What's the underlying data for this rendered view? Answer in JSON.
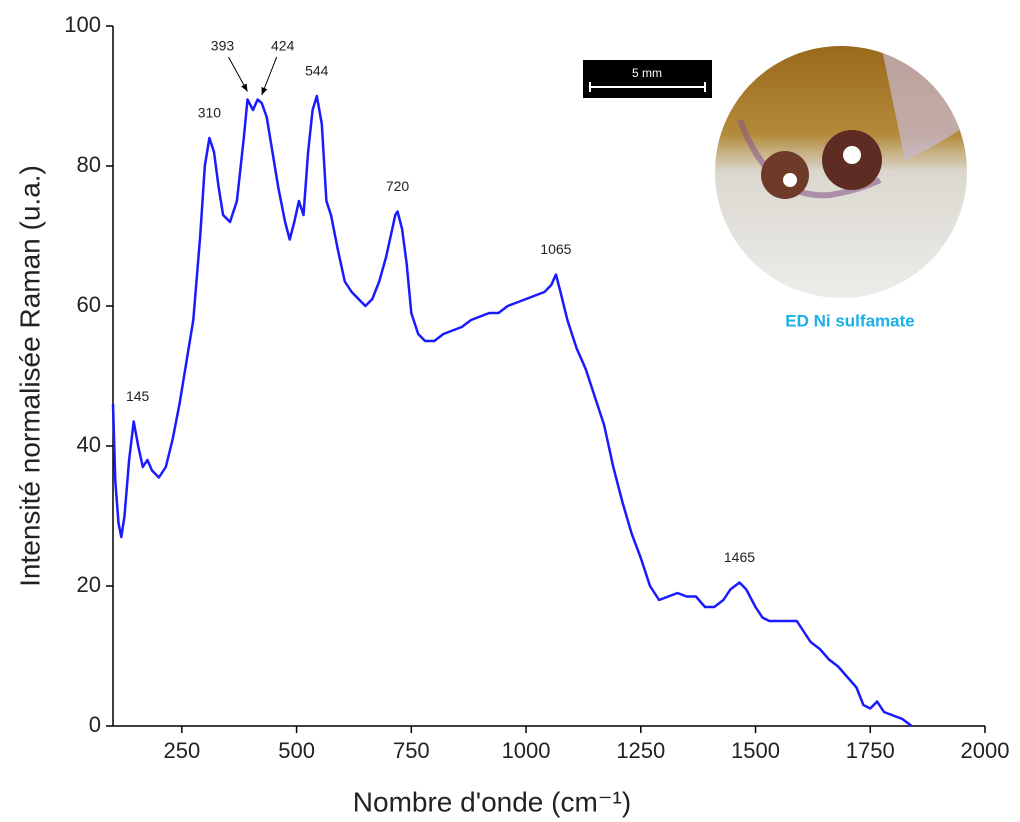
{
  "chart_data": {
    "type": "line",
    "x_label": "Nombre d'onde (cm⁻¹)",
    "y_label": "Intensité normalisée Raman (u.a.)",
    "color": "#1a1aff",
    "xlim": [
      100,
      2000
    ],
    "xticks": [
      250,
      500,
      750,
      1000,
      1250,
      1500,
      1750,
      2000
    ],
    "ylim": [
      0,
      100
    ],
    "yticks": [
      0,
      20,
      40,
      60,
      80,
      100
    ],
    "x": [
      100,
      105,
      112,
      118,
      125,
      135,
      145,
      155,
      165,
      175,
      185,
      200,
      215,
      230,
      245,
      260,
      275,
      290,
      300,
      310,
      320,
      330,
      340,
      355,
      370,
      385,
      393,
      405,
      415,
      424,
      435,
      445,
      460,
      475,
      485,
      495,
      505,
      515,
      525,
      535,
      544,
      555,
      565,
      575,
      590,
      605,
      620,
      635,
      650,
      665,
      680,
      695,
      705,
      715,
      720,
      730,
      740,
      750,
      765,
      780,
      800,
      820,
      840,
      860,
      880,
      900,
      920,
      940,
      960,
      980,
      1000,
      1020,
      1040,
      1055,
      1065,
      1075,
      1090,
      1110,
      1130,
      1150,
      1170,
      1190,
      1210,
      1230,
      1250,
      1270,
      1290,
      1310,
      1330,
      1350,
      1370,
      1390,
      1410,
      1430,
      1445,
      1465,
      1480,
      1500,
      1515,
      1530,
      1550,
      1570,
      1590,
      1605,
      1620,
      1640,
      1660,
      1680,
      1700,
      1720,
      1735,
      1750,
      1765,
      1780,
      1800,
      1820,
      1840
    ],
    "values": [
      46,
      35,
      29,
      27,
      30,
      38,
      43.5,
      40,
      37,
      38,
      36.5,
      35.5,
      37,
      41,
      46,
      52,
      58,
      70,
      80,
      84,
      82,
      77,
      73,
      72,
      75,
      84,
      89.5,
      88,
      89.5,
      89,
      87,
      83,
      77,
      72,
      69.5,
      72,
      75,
      73,
      82,
      88,
      90,
      86,
      75,
      73,
      68,
      63.5,
      62,
      61,
      60,
      61,
      63.5,
      67,
      70,
      73,
      73.5,
      71,
      66,
      59,
      56,
      55,
      55,
      56,
      56.5,
      57,
      58,
      58.5,
      59,
      59,
      60,
      60.5,
      61,
      61.5,
      62,
      63,
      64.5,
      62,
      58,
      54,
      51,
      47,
      43,
      37,
      32,
      27.5,
      24,
      20,
      18,
      18.5,
      19,
      18.5,
      18.5,
      17,
      17,
      18,
      19.5,
      20.5,
      19.5,
      17,
      15.5,
      15,
      15,
      15,
      15,
      13.5,
      12,
      11,
      9.5,
      8.5,
      7,
      5.5,
      3,
      2.5,
      3.5,
      2,
      1.5,
      1,
      0
    ],
    "annotations": [
      {
        "text": "145",
        "x": 145,
        "y": 43.5
      },
      {
        "text": "310",
        "x": 310,
        "y": 84
      },
      {
        "text": "393",
        "x": 393,
        "y": 89.5
      },
      {
        "text": "424",
        "x": 424,
        "y": 89
      },
      {
        "text": "544",
        "x": 544,
        "y": 90
      },
      {
        "text": "720",
        "x": 720,
        "y": 73.5
      },
      {
        "text": "1065",
        "x": 1065,
        "y": 64.5
      },
      {
        "text": "1465",
        "x": 1465,
        "y": 20.5
      }
    ]
  },
  "inset": {
    "scale_bar": "5 mm",
    "caption": "ED Ni sulfamate"
  }
}
